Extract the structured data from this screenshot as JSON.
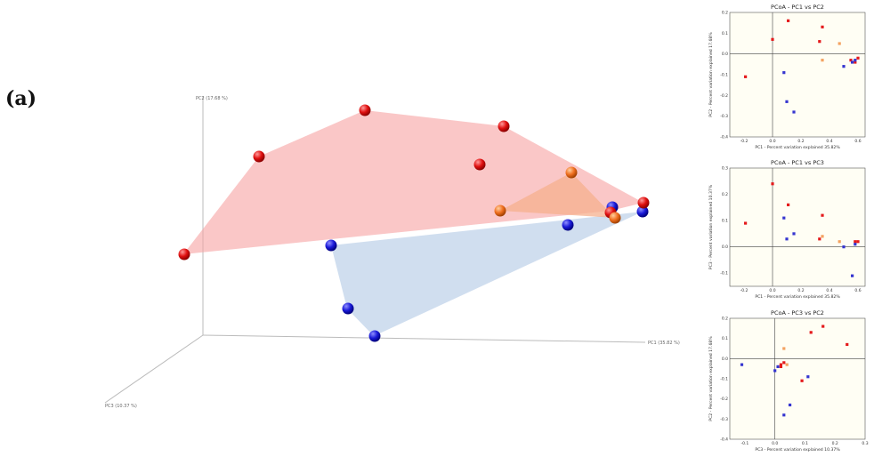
{
  "figure": {
    "panel_label": "(a)"
  },
  "chart_data": [
    {
      "type": "scatter",
      "title": "",
      "axes": {
        "x": "PC1 (35.82 %)",
        "y": "PC2 (17.68 %)",
        "z": "PC3 (10.37 %)"
      },
      "series": [
        {
          "color": "#e41a1c",
          "points": [
            [
              -0.19,
              -0.11,
              0.09
            ],
            [
              0.0,
              0.07,
              0.24
            ],
            [
              0.11,
              0.16,
              0.16
            ],
            [
              0.35,
              0.13,
              0.12
            ],
            [
              0.33,
              0.06,
              0.03
            ],
            [
              0.55,
              -0.03,
              0.01
            ],
            [
              0.6,
              -0.02,
              0.02
            ]
          ]
        },
        {
          "color": "#f4a260",
          "points": [
            [
              0.47,
              0.05,
              0.03
            ],
            [
              0.35,
              -0.03,
              0.04
            ],
            [
              0.52,
              -0.06,
              0.02
            ]
          ]
        },
        {
          "color": "#3535d0",
          "points": [
            [
              0.08,
              -0.08,
              0.11
            ],
            [
              0.1,
              -0.23,
              0.05
            ],
            [
              0.15,
              -0.28,
              0.03
            ],
            [
              0.5,
              -0.06,
              0.0
            ],
            [
              0.56,
              -0.04,
              -0.11
            ],
            [
              0.58,
              -0.03,
              0.01
            ]
          ]
        }
      ]
    },
    {
      "type": "scatter",
      "title": "PCoA - PC1 vs PC2",
      "xlabel": "PC1 - Percent variation explained 35.82%",
      "ylabel": "PC2 - Percent variation explained 17.68%",
      "xlim": [
        -0.3,
        0.65
      ],
      "ylim": [
        -0.4,
        0.2
      ],
      "xticks": [
        "-0.2",
        "0.0",
        "0.2",
        "0.4",
        "0.6"
      ],
      "yticks": [
        "-0.4",
        "-0.3",
        "-0.2",
        "-0.1",
        "0.0",
        "0.1",
        "0.2"
      ],
      "series": [
        {
          "color": "#e41a1c",
          "x": [
            -0.19,
            0.0,
            0.11,
            0.35,
            0.33,
            0.55,
            0.58,
            0.6
          ],
          "y": [
            -0.11,
            0.07,
            0.16,
            0.13,
            0.06,
            -0.03,
            -0.04,
            -0.02
          ]
        },
        {
          "color": "#f4a260",
          "x": [
            0.47,
            0.35
          ],
          "y": [
            0.05,
            -0.03
          ]
        },
        {
          "color": "#3535d0",
          "x": [
            0.08,
            0.1,
            0.15,
            0.5,
            0.56,
            0.58
          ],
          "y": [
            -0.09,
            -0.23,
            -0.28,
            -0.06,
            -0.04,
            -0.03
          ]
        }
      ]
    },
    {
      "type": "scatter",
      "title": "PCoA - PC1 vs PC3",
      "xlabel": "PC1 - Percent variation explained 35.82%",
      "ylabel": "PC3 - Percent variation explained 10.37%",
      "xlim": [
        -0.3,
        0.65
      ],
      "ylim": [
        -0.15,
        0.3
      ],
      "xticks": [
        "-0.2",
        "0.0",
        "0.2",
        "0.4",
        "0.6"
      ],
      "yticks": [
        "-0.1",
        "0.0",
        "0.1",
        "0.2",
        "0.3"
      ],
      "series": [
        {
          "color": "#e41a1c",
          "x": [
            -0.19,
            0.0,
            0.11,
            0.35,
            0.33,
            0.58,
            0.6
          ],
          "y": [
            0.09,
            0.24,
            0.16,
            0.12,
            0.03,
            0.02,
            0.02
          ]
        },
        {
          "color": "#f4a260",
          "x": [
            0.47,
            0.35
          ],
          "y": [
            0.02,
            0.04
          ]
        },
        {
          "color": "#3535d0",
          "x": [
            0.08,
            0.1,
            0.15,
            0.5,
            0.56,
            0.58
          ],
          "y": [
            0.11,
            0.03,
            0.05,
            0.0,
            -0.11,
            0.01
          ]
        }
      ]
    },
    {
      "type": "scatter",
      "title": "PCoA - PC3 vs PC2",
      "xlabel": "PC3 - Percent variation explained 10.37%",
      "ylabel": "PC2 - Percent variation explained 17.68%",
      "xlim": [
        -0.15,
        0.3
      ],
      "ylim": [
        -0.4,
        0.2
      ],
      "xticks": [
        "-0.1",
        "0.0",
        "0.1",
        "0.2",
        "0.3"
      ],
      "yticks": [
        "-0.4",
        "-0.3",
        "-0.2",
        "-0.1",
        "0.0",
        "0.1",
        "0.2"
      ],
      "series": [
        {
          "color": "#e41a1c",
          "x": [
            0.24,
            0.16,
            0.12,
            0.09,
            0.02,
            0.03,
            0.02
          ],
          "y": [
            0.07,
            0.16,
            0.13,
            -0.11,
            -0.03,
            -0.02,
            -0.04
          ]
        },
        {
          "color": "#f4a260",
          "x": [
            0.03,
            0.04
          ],
          "y": [
            0.05,
            -0.03
          ]
        },
        {
          "color": "#3535d0",
          "x": [
            -0.11,
            0.0,
            0.01,
            0.05,
            0.03,
            0.11
          ],
          "y": [
            -0.03,
            -0.06,
            -0.04,
            -0.23,
            -0.28,
            -0.09
          ]
        }
      ]
    }
  ]
}
